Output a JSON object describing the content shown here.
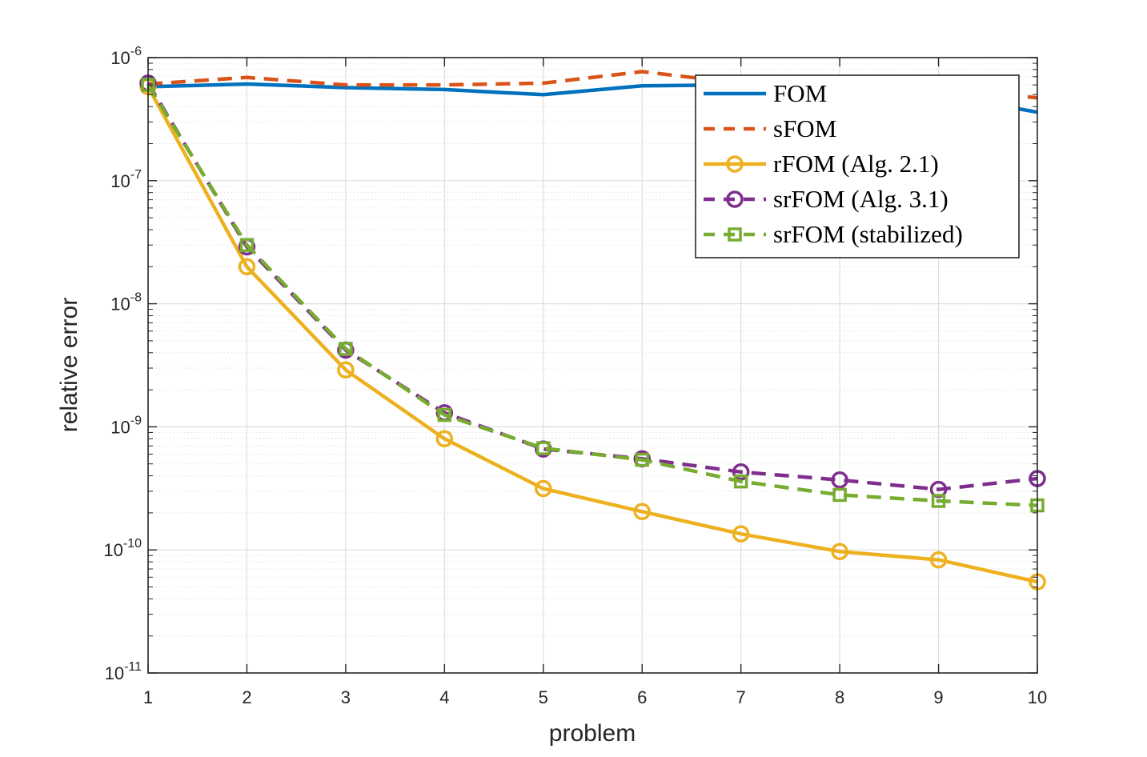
{
  "chart_data": {
    "type": "line",
    "title": "",
    "xlabel": "problem",
    "ylabel": "relative error",
    "yscale": "log",
    "xlim": [
      1,
      10
    ],
    "ylim": [
      1e-11,
      1e-06
    ],
    "grid": true,
    "minor_grid": true,
    "legend_position": "top-right",
    "x": [
      1,
      2,
      3,
      4,
      5,
      6,
      7,
      8,
      9,
      10
    ],
    "x_tick_labels": [
      "1",
      "2",
      "3",
      "4",
      "5",
      "6",
      "7",
      "8",
      "9",
      "10"
    ],
    "y_ticks": [
      {
        "value": 1e-11,
        "base": "10",
        "exp": "-11"
      },
      {
        "value": 1e-10,
        "base": "10",
        "exp": "-10"
      },
      {
        "value": 1e-09,
        "base": "10",
        "exp": "-9"
      },
      {
        "value": 1e-08,
        "base": "10",
        "exp": "-8"
      },
      {
        "value": 1e-07,
        "base": "10",
        "exp": "-7"
      },
      {
        "value": 1e-06,
        "base": "10",
        "exp": "-6"
      }
    ],
    "series": [
      {
        "name": "FOM",
        "color": "#0072BD",
        "line": "solid",
        "marker": "none",
        "values": [
          5.8e-07,
          6.1e-07,
          5.7e-07,
          5.5e-07,
          5e-07,
          5.9e-07,
          6e-07,
          5.9e-07,
          5e-07,
          3.6e-07
        ]
      },
      {
        "name": "sFOM",
        "color": "#D95319",
        "line": "dashed",
        "marker": "none",
        "values": [
          6.1e-07,
          6.9e-07,
          6e-07,
          6e-07,
          6.2e-07,
          7.7e-07,
          6.2e-07,
          6e-07,
          5.8e-07,
          4.7e-07
        ]
      },
      {
        "name": "rFOM (Alg. 2.1)",
        "color": "#EDB120",
        "line": "solid",
        "marker": "circle",
        "values": [
          5.8e-07,
          2e-08,
          2.9e-09,
          8e-10,
          3.15e-10,
          2.05e-10,
          1.35e-10,
          9.7e-11,
          8.3e-11,
          5.5e-11
        ]
      },
      {
        "name": "srFOM (Alg. 3.1)",
        "color": "#7E2F8E",
        "line": "dashed",
        "marker": "circle",
        "values": [
          6.2e-07,
          2.9e-08,
          4.2e-09,
          1.3e-09,
          6.6e-10,
          5.5e-10,
          4.3e-10,
          3.7e-10,
          3.1e-10,
          3.8e-10
        ]
      },
      {
        "name": "srFOM (stabilized)",
        "color": "#77AC30",
        "line": "dashed",
        "marker": "square",
        "values": [
          6e-07,
          3e-08,
          4.3e-09,
          1.25e-09,
          6.7e-10,
          5.4e-10,
          3.6e-10,
          2.8e-10,
          2.5e-10,
          2.3e-10
        ]
      }
    ]
  }
}
